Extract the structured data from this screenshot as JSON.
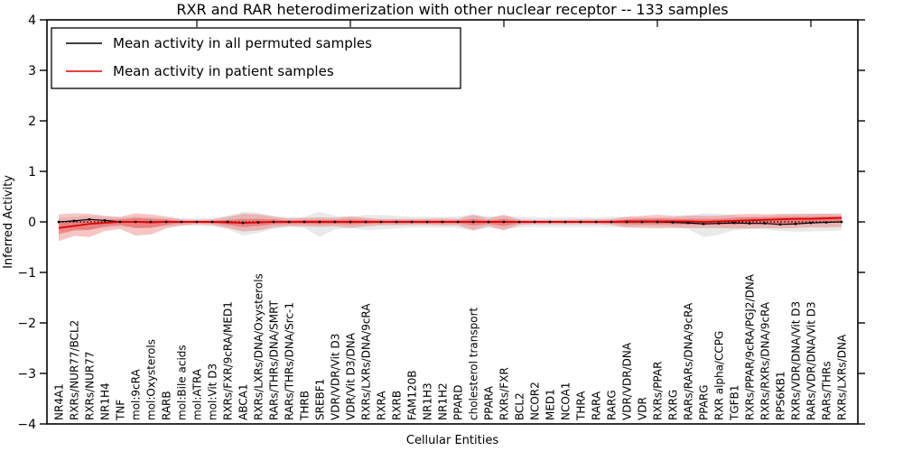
{
  "chart_data": {
    "type": "line",
    "title": "RXR and RAR heterodimerization with other nuclear receptor -- 133 samples",
    "xlabel": "Cellular Entities",
    "ylabel": "Inferred Activity",
    "ylim": [
      -4,
      4
    ],
    "yticks": [
      -4,
      -3,
      -2,
      -1,
      0,
      1,
      2,
      3,
      4
    ],
    "grid": false,
    "legend_position": "upper left",
    "categories": [
      "NR4A1",
      "RXRs/NUR77/BCL2",
      "RXRs/NUR77",
      "NR1H4",
      "TNF",
      "mol:9cRA",
      "mol:Oxysterols",
      "RARB",
      "mol:Bile acids",
      "mol:ATRA",
      "mol:Vit D3",
      "RXRs/FXR/9cRA/MED1",
      "ABCA1",
      "RXRs/LXRs/DNA/Oxysterols",
      "RARs/THRs/DNA/SMRT",
      "RARs/THRs/DNA/Src-1",
      "THRB",
      "SREBF1",
      "VDR/VDR/Vit D3",
      "VDR/Vit D3/DNA",
      "RXRs/LXRs/DNA/9cRA",
      "RXRA",
      "RXRB",
      "FAM120B",
      "NR1H3",
      "NR1H2",
      "PPARD",
      "cholesterol transport",
      "PPARA",
      "RXRs/FXR",
      "BCL2",
      "NCOR2",
      "MED1",
      "NCOA1",
      "THRA",
      "RARA",
      "RARG",
      "VDR/VDR/DNA",
      "VDR",
      "RXRs/PPAR",
      "RXRG",
      "RARs/RARs/DNA/9cRA",
      "PPARG",
      "RXR alpha/CCPG",
      "TGFB1",
      "RXRs/PPAR/9cRA/PGJ2/DNA",
      "RXRs/RXRs/DNA/9cRA",
      "RPS6KB1",
      "RXRs/VDR/DNA/Vit D3",
      "RARs/VDR/DNA/Vit D3",
      "RARs/THRs",
      "RXRs/LXRs/DNA"
    ],
    "series": [
      {
        "name": "Mean activity in all permuted samples",
        "color": "#000000",
        "values": [
          0.0,
          0.02,
          0.05,
          0.03,
          0.0,
          0.0,
          0.0,
          0.0,
          0.0,
          0.0,
          0.0,
          0.0,
          -0.02,
          -0.01,
          0.0,
          0.0,
          0.0,
          0.0,
          0.0,
          0.0,
          0.0,
          0.0,
          0.0,
          0.0,
          0.0,
          0.0,
          0.0,
          0.0,
          0.0,
          0.0,
          0.0,
          0.0,
          0.0,
          0.0,
          0.0,
          0.0,
          0.0,
          0.0,
          0.0,
          0.0,
          -0.01,
          -0.02,
          -0.04,
          -0.03,
          -0.02,
          -0.03,
          -0.03,
          -0.05,
          -0.04,
          -0.02,
          -0.01,
          0.0
        ]
      },
      {
        "name": "Mean activity in patient samples",
        "color": "#e00000",
        "values": [
          -0.12,
          -0.08,
          -0.04,
          -0.02,
          0.0,
          0.0,
          -0.01,
          0.0,
          0.0,
          0.0,
          0.0,
          -0.01,
          -0.02,
          -0.01,
          0.0,
          0.0,
          0.0,
          0.0,
          0.0,
          0.0,
          0.0,
          0.0,
          0.0,
          0.0,
          0.0,
          0.0,
          0.0,
          0.0,
          0.0,
          0.0,
          0.0,
          0.0,
          0.0,
          0.0,
          0.0,
          0.0,
          0.0,
          0.01,
          0.01,
          0.01,
          0.01,
          0.01,
          0.0,
          0.01,
          0.02,
          0.03,
          0.04,
          0.05,
          0.06,
          0.06,
          0.07,
          0.08
        ]
      }
    ],
    "bands": [
      {
        "name": "permuted-std-band",
        "color": "#999999",
        "opacity": 0.22,
        "upper": [
          0.08,
          0.1,
          0.12,
          0.1,
          0.09,
          0.1,
          0.09,
          0.07,
          0.07,
          0.07,
          0.08,
          0.12,
          0.2,
          0.18,
          0.12,
          0.09,
          0.1,
          0.2,
          0.12,
          0.1,
          0.14,
          0.14,
          0.12,
          0.1,
          0.1,
          0.1,
          0.11,
          0.15,
          0.11,
          0.12,
          0.1,
          0.09,
          0.09,
          0.09,
          0.09,
          0.09,
          0.1,
          0.1,
          0.08,
          0.08,
          0.09,
          0.12,
          0.17,
          0.16,
          0.12,
          0.11,
          0.12,
          0.14,
          0.15,
          0.16,
          0.17,
          0.18
        ],
        "lower": [
          -0.12,
          -0.14,
          -0.15,
          -0.12,
          -0.1,
          -0.12,
          -0.11,
          -0.09,
          -0.08,
          -0.08,
          -0.09,
          -0.14,
          -0.27,
          -0.22,
          -0.14,
          -0.1,
          -0.12,
          -0.3,
          -0.15,
          -0.12,
          -0.16,
          -0.15,
          -0.13,
          -0.11,
          -0.11,
          -0.11,
          -0.12,
          -0.18,
          -0.12,
          -0.14,
          -0.11,
          -0.1,
          -0.1,
          -0.1,
          -0.1,
          -0.1,
          -0.11,
          -0.11,
          -0.09,
          -0.09,
          -0.1,
          -0.14,
          -0.3,
          -0.26,
          -0.16,
          -0.14,
          -0.15,
          -0.18,
          -0.19,
          -0.19,
          -0.18,
          -0.17
        ]
      },
      {
        "name": "patient-std-band",
        "color": "#e84040",
        "opacity": 0.3,
        "upper": [
          0.15,
          0.17,
          0.16,
          0.12,
          0.1,
          0.17,
          0.15,
          0.11,
          0.05,
          0.04,
          0.05,
          0.1,
          0.16,
          0.15,
          0.1,
          0.07,
          0.08,
          0.09,
          0.08,
          0.11,
          0.08,
          0.06,
          0.06,
          0.06,
          0.06,
          0.07,
          0.06,
          0.14,
          0.07,
          0.14,
          0.05,
          0.04,
          0.04,
          0.04,
          0.05,
          0.05,
          0.06,
          0.1,
          0.12,
          0.14,
          0.12,
          0.13,
          0.12,
          0.12,
          0.15,
          0.16,
          0.15,
          0.16,
          0.16,
          0.16,
          0.16,
          0.15
        ],
        "lower": [
          -0.38,
          -0.28,
          -0.3,
          -0.18,
          -0.14,
          -0.27,
          -0.25,
          -0.13,
          -0.07,
          -0.05,
          -0.06,
          -0.12,
          -0.19,
          -0.17,
          -0.11,
          -0.08,
          -0.09,
          -0.1,
          -0.09,
          -0.12,
          -0.09,
          -0.07,
          -0.07,
          -0.06,
          -0.06,
          -0.07,
          -0.07,
          -0.16,
          -0.08,
          -0.17,
          -0.06,
          -0.05,
          -0.05,
          -0.05,
          -0.05,
          -0.05,
          -0.06,
          -0.11,
          -0.12,
          -0.13,
          -0.12,
          -0.12,
          -0.12,
          -0.12,
          -0.13,
          -0.13,
          -0.12,
          -0.13,
          -0.12,
          -0.11,
          -0.11,
          -0.1
        ]
      },
      {
        "name": "patient-sem-band",
        "color": "#e84040",
        "opacity": 0.45,
        "upper": [
          0.0,
          0.03,
          0.05,
          0.04,
          0.05,
          0.08,
          0.06,
          0.05,
          0.02,
          0.02,
          0.02,
          0.04,
          0.06,
          0.06,
          0.05,
          0.03,
          0.04,
          0.04,
          0.04,
          0.05,
          0.04,
          0.03,
          0.03,
          0.03,
          0.03,
          0.03,
          0.03,
          0.06,
          0.03,
          0.06,
          0.02,
          0.02,
          0.02,
          0.02,
          0.02,
          0.02,
          0.03,
          0.05,
          0.06,
          0.07,
          0.06,
          0.06,
          0.06,
          0.06,
          0.08,
          0.09,
          0.09,
          0.1,
          0.1,
          0.1,
          0.11,
          0.11
        ],
        "lower": [
          -0.24,
          -0.17,
          -0.16,
          -0.09,
          -0.06,
          -0.12,
          -0.12,
          -0.06,
          -0.03,
          -0.02,
          -0.03,
          -0.06,
          -0.1,
          -0.08,
          -0.05,
          -0.04,
          -0.04,
          -0.05,
          -0.04,
          -0.05,
          -0.04,
          -0.03,
          -0.03,
          -0.03,
          -0.03,
          -0.03,
          -0.03,
          -0.07,
          -0.04,
          -0.08,
          -0.03,
          -0.02,
          -0.02,
          -0.02,
          -0.02,
          -0.02,
          -0.03,
          -0.05,
          -0.05,
          -0.05,
          -0.05,
          -0.05,
          -0.05,
          -0.05,
          -0.05,
          -0.04,
          -0.04,
          -0.04,
          -0.03,
          -0.02,
          -0.02,
          -0.01
        ]
      }
    ],
    "zero_line": {
      "show": true,
      "style": "dotted",
      "color": "#000000"
    }
  }
}
